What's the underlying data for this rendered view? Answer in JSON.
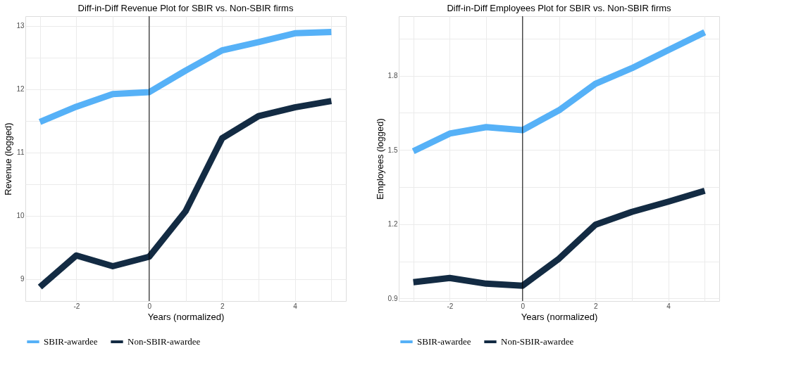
{
  "chart_data": [
    {
      "type": "line",
      "title": "Diff-in-Diff Revenue Plot for SBIR vs. Non-SBIR firms",
      "xlabel": "Years (normalized)",
      "ylabel": "Revenue (logged)",
      "x": [
        -3,
        -2,
        -1,
        0,
        1,
        2,
        3,
        4,
        5
      ],
      "series": [
        {
          "name": "SBIR-awardee",
          "color": "#56b1f7",
          "values": [
            11.48,
            11.72,
            11.92,
            11.95,
            12.29,
            12.61,
            12.74,
            12.88,
            12.9
          ]
        },
        {
          "name": "Non-SBIR-awardee",
          "color": "#132b43",
          "values": [
            8.87,
            9.37,
            9.2,
            9.35,
            10.07,
            11.22,
            11.57,
            11.71,
            11.81
          ]
        }
      ],
      "xlim": [
        -3.4,
        5.4
      ],
      "ylim": [
        8.65,
        13.15
      ],
      "xticks": [
        {
          "value": -3,
          "label": null
        },
        -2,
        {
          "value": -1,
          "label": null
        },
        0,
        {
          "value": 1,
          "label": null
        },
        2,
        {
          "value": 3,
          "label": null
        },
        4,
        {
          "value": 5,
          "label": null
        }
      ],
      "yticks": [
        9,
        {
          "value": 9.5,
          "label": null
        },
        10,
        {
          "value": 10.5,
          "label": null
        },
        11,
        {
          "value": 11.5,
          "label": null
        },
        12,
        {
          "value": 12.5,
          "label": null
        },
        13
      ],
      "ref_lines": [
        {
          "axis": "x",
          "value": 0,
          "color": "#000000"
        }
      ],
      "grid": true,
      "legend": "bottom",
      "line_style": "solid",
      "marker": "none"
    },
    {
      "type": "line",
      "title": "Diff-in-Diff Employees Plot for SBIR vs. Non-SBIR firms",
      "xlabel": "Years (normalized)",
      "ylabel": "Employees (logged)",
      "x": [
        -3,
        -2,
        -1,
        0,
        1,
        2,
        3,
        4,
        5
      ],
      "series": [
        {
          "name": "SBIR-awardee",
          "color": "#56b1f7",
          "values": [
            1.495,
            1.566,
            1.592,
            1.58,
            1.66,
            1.767,
            1.83,
            1.903,
            1.975
          ]
        },
        {
          "name": "Non-SBIR-awardee",
          "color": "#132b43",
          "values": [
            0.966,
            0.983,
            0.96,
            0.952,
            1.061,
            1.198,
            1.25,
            1.291,
            1.335
          ]
        }
      ],
      "xlim": [
        -3.4,
        5.4
      ],
      "ylim": [
        0.89,
        2.04
      ],
      "xticks": [
        {
          "value": -3,
          "label": null
        },
        -2,
        {
          "value": -1,
          "label": null
        },
        0,
        {
          "value": 1,
          "label": null
        },
        2,
        {
          "value": 3,
          "label": null
        },
        4,
        {
          "value": 5,
          "label": null
        }
      ],
      "yticks": [
        0.9,
        {
          "value": 1.05,
          "label": null
        },
        1.2,
        {
          "value": 1.35,
          "label": null
        },
        1.5,
        {
          "value": 1.65,
          "label": null
        },
        1.8,
        {
          "value": 1.95,
          "label": null
        }
      ],
      "ref_lines": [
        {
          "axis": "x",
          "value": 0,
          "color": "#000000"
        }
      ],
      "grid": true,
      "legend": "bottom",
      "line_style": "solid",
      "marker": "none"
    }
  ]
}
